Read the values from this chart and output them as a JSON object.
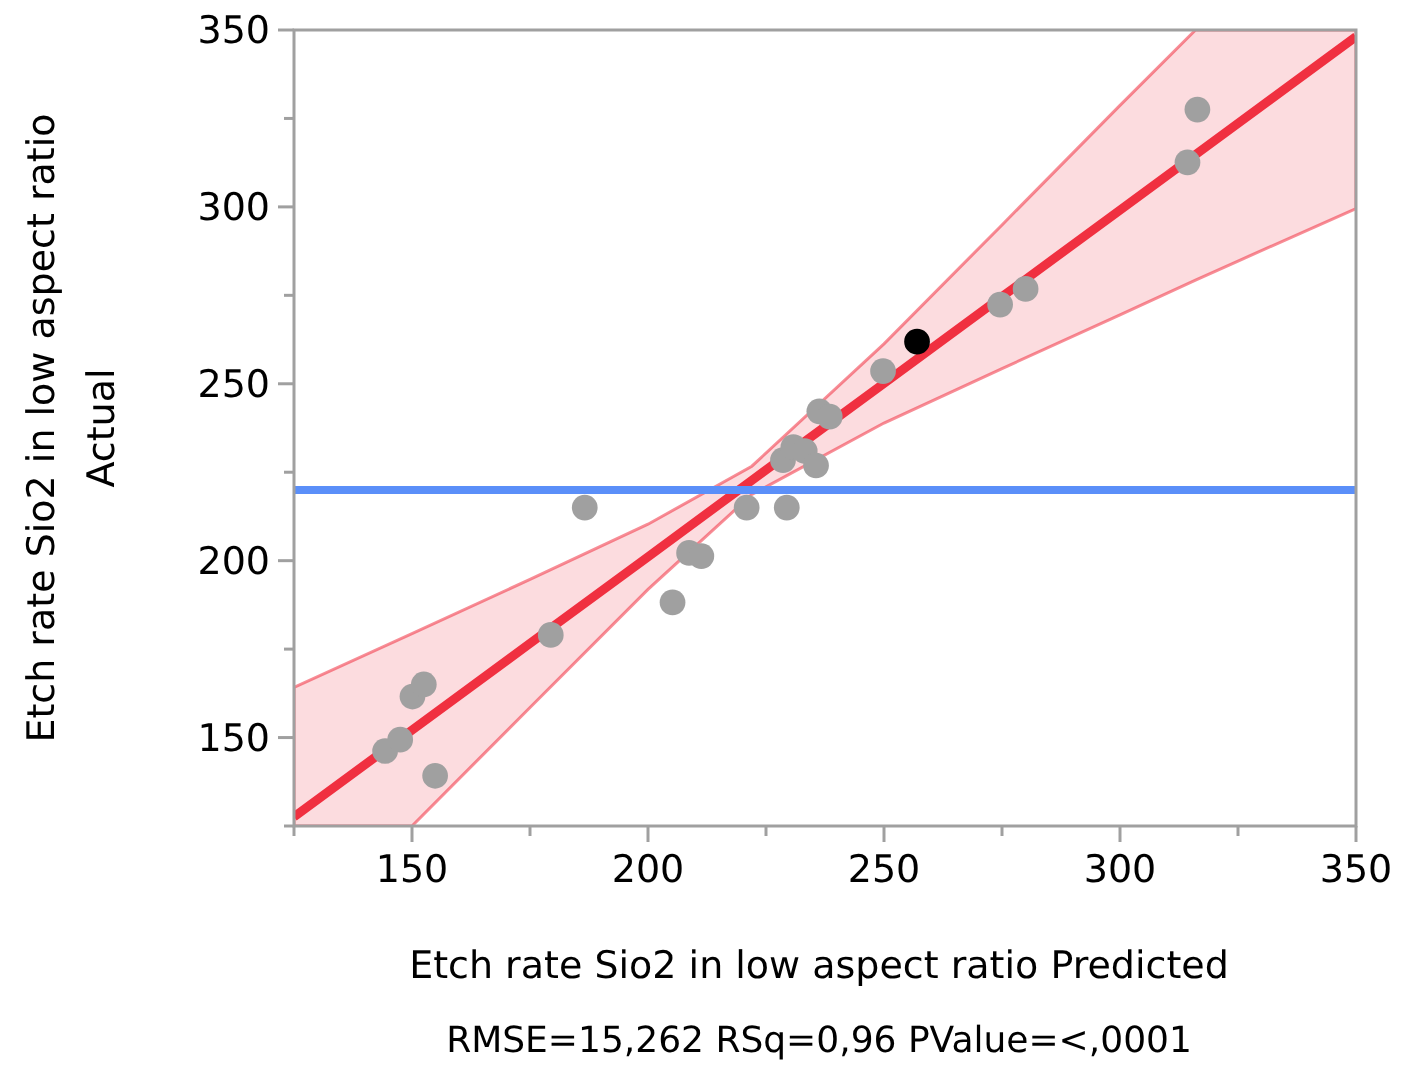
{
  "chart_data": {
    "type": "scatter",
    "xlabel": "Etch rate Sio2 in low aspect ratio Predicted",
    "ylabel": "Etch rate Sio2 in low aspect ratio\nActual",
    "annotations": [
      "RMSE=15,262 RSq=0,96 PValue=<,0001"
    ],
    "xlim": [
      125,
      350
    ],
    "ylim": [
      125,
      350
    ],
    "xticks": [
      {
        "value": 125,
        "label": null
      },
      150,
      {
        "value": 175,
        "label": null
      },
      200,
      {
        "value": 225,
        "label": null
      },
      250,
      {
        "value": 275,
        "label": null
      },
      300,
      {
        "value": 325,
        "label": null
      },
      350
    ],
    "yticks": [
      {
        "value": 125,
        "label": null
      },
      150,
      {
        "value": 175,
        "label": null
      },
      200,
      {
        "value": 225,
        "label": null
      },
      250,
      {
        "value": 275,
        "label": null
      },
      300,
      {
        "value": 325,
        "label": null
      },
      350
    ],
    "grid": false,
    "marker": "circle",
    "ref_lines": [
      {
        "axis": "y",
        "value": 220,
        "color": "#5b8ff9"
      }
    ],
    "series": [
      {
        "type": "line",
        "marker": "none",
        "color": "#f03040",
        "x": [
          125,
          150,
          175,
          200,
          222,
          250,
          275,
          300,
          316,
          325,
          350
        ],
        "values": [
          127.6,
          152.1,
          176.6,
          201.1,
          222.7,
          250.1,
          274.6,
          299.1,
          314.8,
          323.6,
          348.1
        ],
        "lower": [
          125,
          125,
          158.5,
          191.9,
          218.7,
          238.9,
          254.3,
          269.5,
          279.3,
          284.7,
          299.5
        ],
        "upper": [
          164.2,
          179.4,
          194.7,
          210.3,
          226.7,
          261.3,
          294.9,
          328.7,
          350,
          350,
          350
        ]
      },
      {
        "color": "#a0a0a0",
        "x": [
          144.3,
          147.5,
          150.1,
          152.5,
          154.9,
          179.4,
          186.6,
          205.2,
          208.7,
          211.3,
          220.9,
          229.4,
          228.6,
          230.8,
          233.2,
          235.6,
          236.3,
          238.5,
          249.8,
          274.6,
          280,
          316.4,
          314.3
        ],
        "values": [
          146.2,
          149.4,
          161.6,
          165,
          139.2,
          179,
          215,
          188.2,
          202.2,
          201.3,
          215,
          215,
          228.4,
          232.1,
          231,
          226.9,
          242.2,
          240.7,
          253.6,
          272.4,
          276.8,
          327.5,
          312.6
        ]
      },
      {
        "color": "#000000",
        "x": [
          257
        ],
        "values": [
          261.9
        ]
      }
    ]
  }
}
